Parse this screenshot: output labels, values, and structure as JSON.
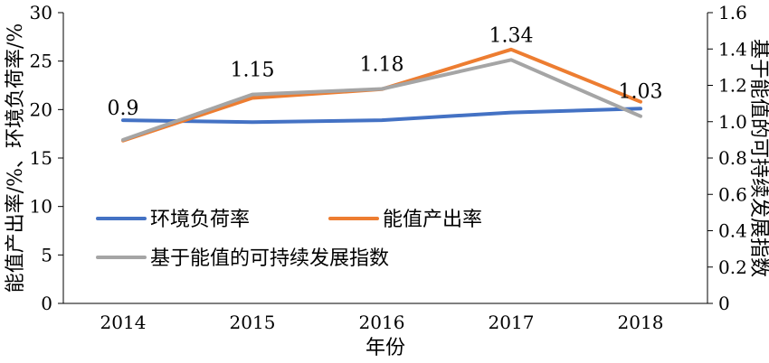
{
  "chart_data": {
    "type": "line",
    "x": [
      "2014",
      "2015",
      "2016",
      "2017",
      "2018"
    ],
    "xlabel": "年份",
    "ylabel_left": "能值产出率/%、环境负荷率/%",
    "ylabel_right": "基于能值的可持续发展指数",
    "ylim_left": [
      0,
      30
    ],
    "ylim_right": [
      0,
      1.6
    ],
    "yticks_left": [
      "0",
      "5",
      "10",
      "15",
      "20",
      "25",
      "30"
    ],
    "yticks_right": [
      "0",
      "0.2",
      "0.4",
      "0.6",
      "0.8",
      "1.0",
      "1.2",
      "1.4",
      "1.6"
    ],
    "grid": false,
    "legend_position": "lower-left",
    "series": [
      {
        "name": "环境负荷率",
        "axis": "left",
        "color": "#4472C4",
        "values": [
          18.9,
          18.7,
          18.9,
          19.7,
          20.1
        ]
      },
      {
        "name": "能值产出率",
        "axis": "left",
        "color": "#ED7D31",
        "values": [
          16.8,
          21.2,
          22.1,
          26.2,
          20.8
        ]
      },
      {
        "name": "基于能值的可持续发展指数",
        "axis": "right",
        "color": "#A5A5A5",
        "values": [
          0.9,
          1.15,
          1.18,
          1.34,
          1.03
        ]
      }
    ],
    "annotations": [
      "0.9",
      "1.15",
      "1.18",
      "1.34",
      "1.03"
    ]
  }
}
